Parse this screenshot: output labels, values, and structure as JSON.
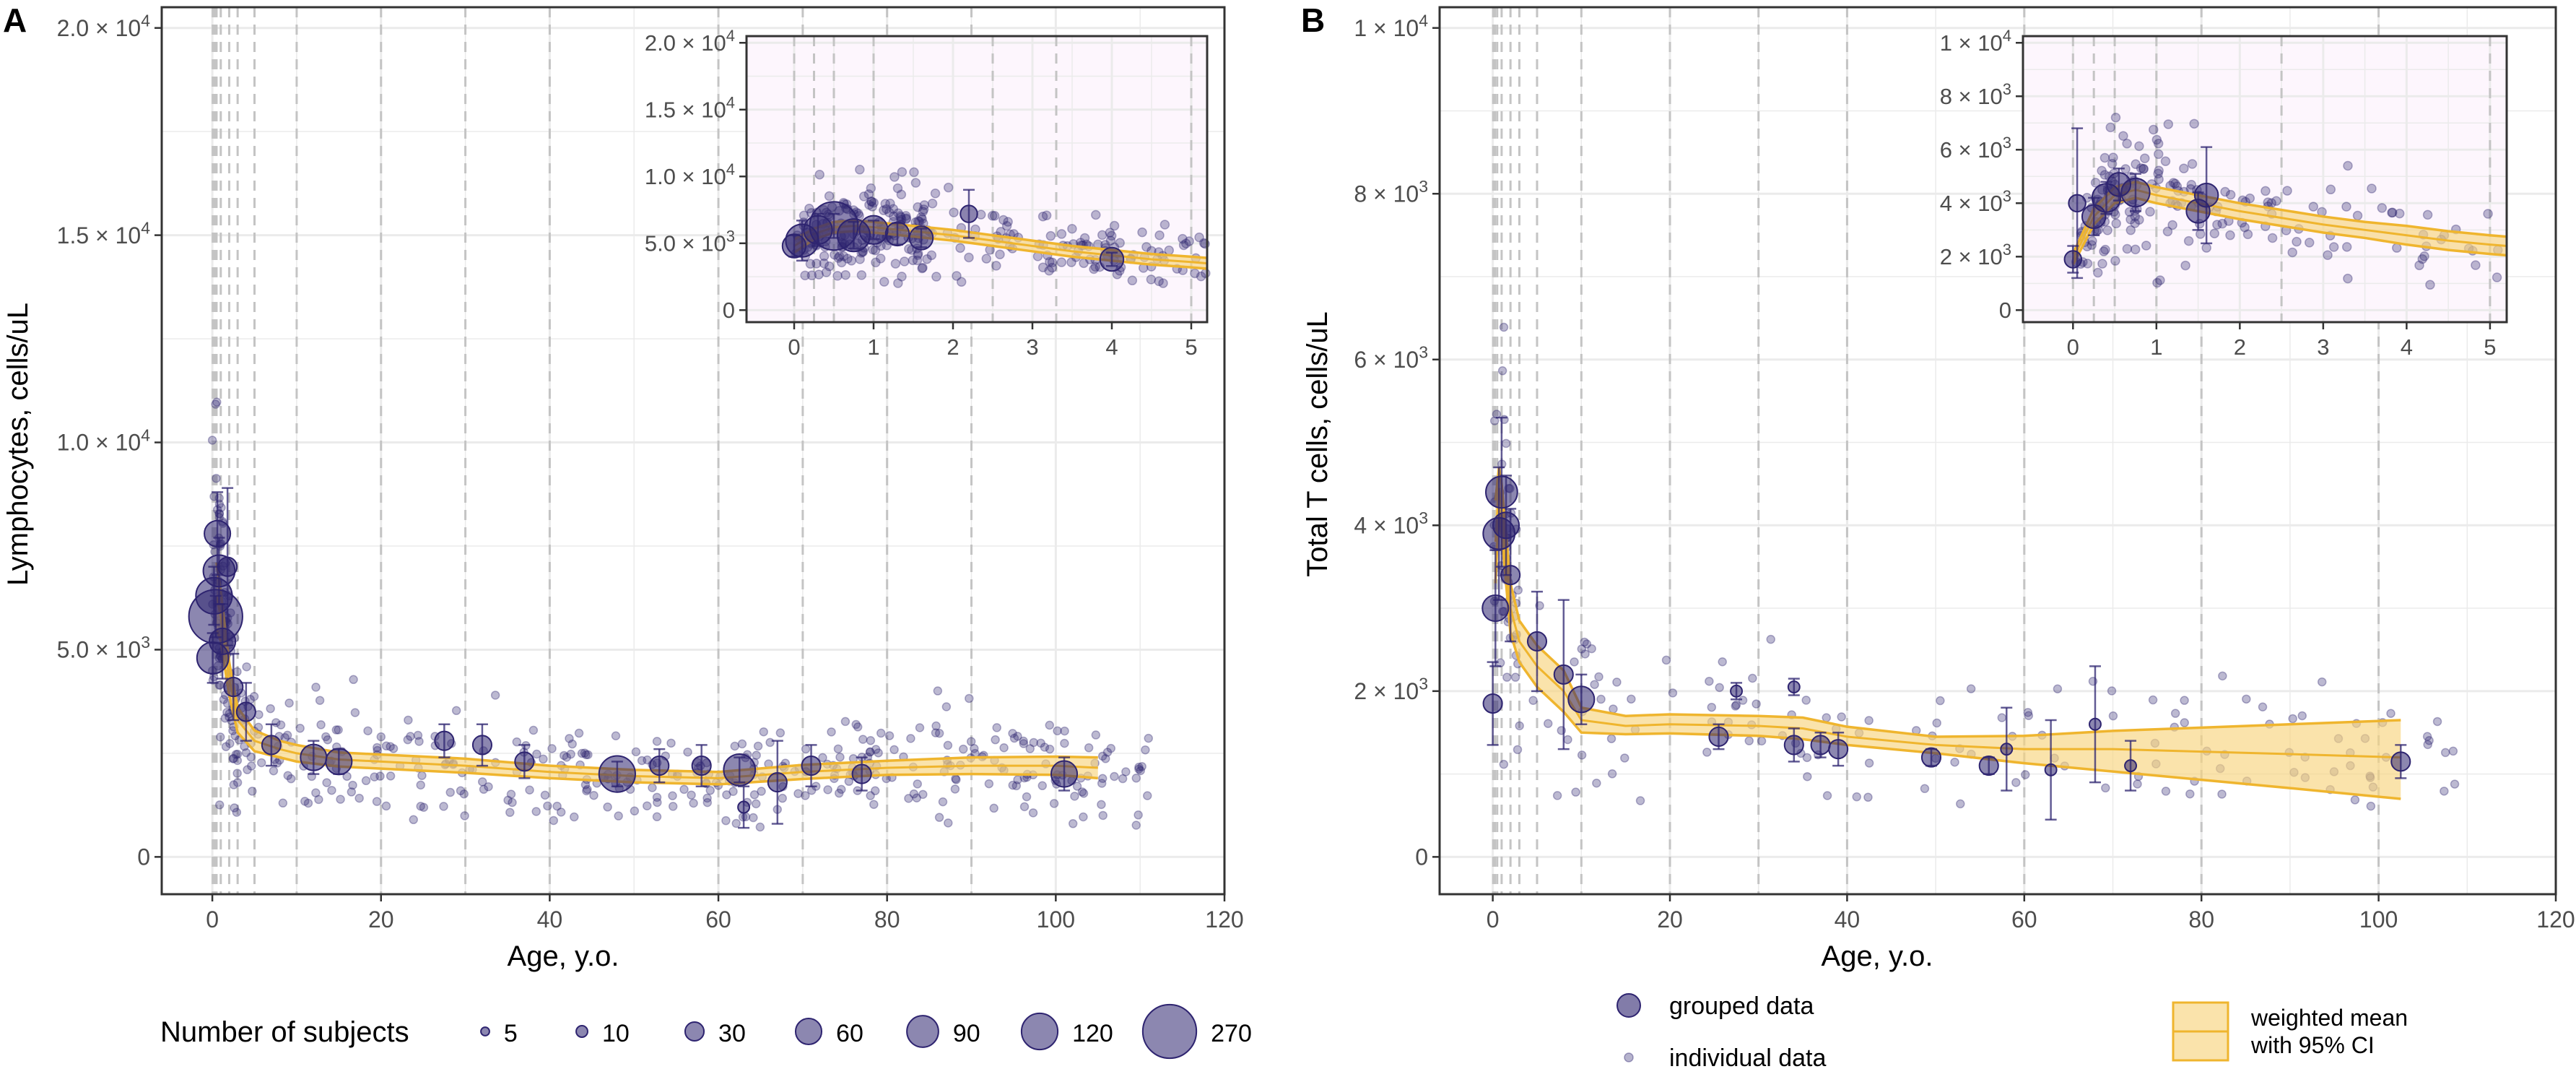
{
  "colors": {
    "points": "#2E2470",
    "ribbon_fill": "#F8D47E",
    "ribbon_line": "#EFB52E",
    "grid": "#EBEBEB",
    "vline": "#C4C4C4",
    "inset_bg": "#FDF6FD",
    "axis_text": "#4D4D4D"
  },
  "chart_data": [
    {
      "panel": "A",
      "type": "scatter",
      "ylabel": "Lymphocytes, cells/uL",
      "xlabel": "Age, y.o.",
      "xlim": [
        -6,
        120
      ],
      "ylim": [
        -900,
        20500
      ],
      "xticks": [
        0,
        20,
        40,
        60,
        80,
        100,
        120
      ],
      "xtick_labels": [
        "0",
        "20",
        "40",
        "60",
        "80",
        "100",
        "120"
      ],
      "yticks": [
        0,
        5000,
        10000,
        15000,
        20000
      ],
      "ytick_labels": [
        {
          "mant": "0",
          "exp": ""
        },
        {
          "mant": "5.0 × 10",
          "exp": "3"
        },
        {
          "mant": "1.0 × 10",
          "exp": "4"
        },
        {
          "mant": "1.5 × 10",
          "exp": "4"
        },
        {
          "mant": "2.0 × 10",
          "exp": "4"
        }
      ],
      "age_group_boundaries": [
        0.05,
        0.25,
        0.5,
        1,
        2,
        3,
        5,
        10,
        20,
        30,
        40,
        60,
        70,
        80,
        90
      ],
      "ribbon": {
        "x": [
          0.5,
          1,
          2,
          3,
          5,
          8,
          10,
          15,
          20,
          30,
          40,
          50,
          60,
          70,
          80,
          90,
          100,
          105
        ],
        "mean": [
          6300,
          5800,
          4300,
          3300,
          2800,
          2600,
          2500,
          2350,
          2300,
          2200,
          2050,
          1950,
          1900,
          2050,
          2150,
          2200,
          2200,
          2150
        ],
        "lower": [
          5500,
          5200,
          3900,
          3000,
          2550,
          2400,
          2300,
          2180,
          2130,
          2030,
          1900,
          1800,
          1750,
          1880,
          1980,
          2000,
          1980,
          1900
        ],
        "upper": [
          7100,
          6400,
          4700,
          3600,
          3050,
          2800,
          2700,
          2520,
          2470,
          2370,
          2200,
          2100,
          2050,
          2220,
          2320,
          2400,
          2420,
          2400
        ]
      },
      "grouped": [
        {
          "x": 0.05,
          "y": 4800,
          "n": 90,
          "err": 600
        },
        {
          "x": 0.2,
          "y": 6300,
          "n": 120,
          "err": 700
        },
        {
          "x": 0.4,
          "y": 5800,
          "n": 270,
          "err": 500
        },
        {
          "x": 0.6,
          "y": 7800,
          "n": 60,
          "err": 1000
        },
        {
          "x": 0.8,
          "y": 6900,
          "n": 90,
          "err": 800
        },
        {
          "x": 1.2,
          "y": 5200,
          "n": 60,
          "err": 900
        },
        {
          "x": 1.8,
          "y": 7000,
          "n": 30,
          "err": 1900
        },
        {
          "x": 2.5,
          "y": 4100,
          "n": 30,
          "err": 800
        },
        {
          "x": 4,
          "y": 3500,
          "n": 30,
          "err": 700
        },
        {
          "x": 7,
          "y": 2700,
          "n": 30,
          "err": 500
        },
        {
          "x": 12,
          "y": 2400,
          "n": 60,
          "err": 400
        },
        {
          "x": 15,
          "y": 2300,
          "n": 60,
          "err": 300
        },
        {
          "x": 27.5,
          "y": 2800,
          "n": 30,
          "err": 400
        },
        {
          "x": 32,
          "y": 2700,
          "n": 30,
          "err": 500
        },
        {
          "x": 37,
          "y": 2300,
          "n": 30,
          "err": 400
        },
        {
          "x": 48,
          "y": 2000,
          "n": 120,
          "err": 300
        },
        {
          "x": 53,
          "y": 2200,
          "n": 30,
          "err": 400
        },
        {
          "x": 58,
          "y": 2200,
          "n": 30,
          "err": 500
        },
        {
          "x": 62.5,
          "y": 2100,
          "n": 90,
          "err": 300
        },
        {
          "x": 63,
          "y": 1200,
          "n": 10,
          "err": 500
        },
        {
          "x": 67,
          "y": 1800,
          "n": 30,
          "err": 1000
        },
        {
          "x": 71,
          "y": 2200,
          "n": 30,
          "err": 500
        },
        {
          "x": 77,
          "y": 2000,
          "n": 30,
          "err": 400
        },
        {
          "x": 101,
          "y": 2000,
          "n": 60,
          "err": 400
        }
      ],
      "inset": {
        "xlim": [
          -0.6,
          5.2
        ],
        "ylim": [
          -900,
          20500
        ],
        "xticks": [
          0,
          1,
          2,
          3,
          4,
          5
        ],
        "xtick_labels": [
          "0",
          "1",
          "2",
          "3",
          "4",
          "5"
        ],
        "yticks": [
          0,
          5000,
          10000,
          15000,
          20000
        ],
        "ytick_labels": [
          {
            "mant": "0",
            "exp": ""
          },
          {
            "mant": "5.0 × 10",
            "exp": "3"
          },
          {
            "mant": "1.0 × 10",
            "exp": "4"
          },
          {
            "mant": "1.5 × 10",
            "exp": "4"
          },
          {
            "mant": "2.0 × 10",
            "exp": "4"
          }
        ],
        "age_group_boundaries": [
          0,
          0.25,
          0.5,
          1,
          2.5,
          3.3,
          5
        ],
        "ribbon": {
          "x": [
            0,
            0.25,
            0.5,
            0.75,
            1,
            1.5,
            2,
            2.5,
            3,
            3.5,
            4,
            4.5,
            5,
            5.2
          ],
          "mean": [
            4800,
            5700,
            6200,
            6300,
            6200,
            5900,
            5600,
            5200,
            4800,
            4400,
            4100,
            3800,
            3600,
            3500
          ],
          "lower": [
            4300,
            5300,
            5800,
            5900,
            5800,
            5500,
            5200,
            4800,
            4400,
            4000,
            3700,
            3400,
            3200,
            3100
          ],
          "upper": [
            5300,
            6100,
            6600,
            6700,
            6600,
            6300,
            6000,
            5600,
            5200,
            4800,
            4500,
            4200,
            4000,
            3900
          ]
        },
        "grouped": [
          {
            "x": 0,
            "y": 4800,
            "n": 60,
            "err": 800
          },
          {
            "x": 0.1,
            "y": 5200,
            "n": 120,
            "err": 1500
          },
          {
            "x": 0.3,
            "y": 6000,
            "n": 90,
            "err": 1200
          },
          {
            "x": 0.5,
            "y": 6300,
            "n": 270,
            "err": 900
          },
          {
            "x": 0.75,
            "y": 5600,
            "n": 120,
            "err": 1000
          },
          {
            "x": 1,
            "y": 6000,
            "n": 90,
            "err": 700
          },
          {
            "x": 1.3,
            "y": 5700,
            "n": 60,
            "err": 800
          },
          {
            "x": 1.6,
            "y": 5400,
            "n": 60,
            "err": 700
          },
          {
            "x": 2.2,
            "y": 7200,
            "n": 30,
            "err": 1800
          },
          {
            "x": 4,
            "y": 3800,
            "n": 60,
            "err": 500
          }
        ]
      }
    },
    {
      "panel": "B",
      "type": "scatter",
      "ylabel": "Total T cells, cells/uL",
      "xlabel": "Age, y.o.",
      "xlim": [
        -6,
        120
      ],
      "ylim": [
        -450,
        10250
      ],
      "xticks": [
        0,
        20,
        40,
        60,
        80,
        100,
        120
      ],
      "xtick_labels": [
        "0",
        "20",
        "40",
        "60",
        "80",
        "100",
        "120"
      ],
      "yticks": [
        0,
        2000,
        4000,
        6000,
        8000,
        10000
      ],
      "ytick_labels": [
        {
          "mant": "0",
          "exp": ""
        },
        {
          "mant": "2 × 10",
          "exp": "3"
        },
        {
          "mant": "4 × 10",
          "exp": "3"
        },
        {
          "mant": "6 × 10",
          "exp": "3"
        },
        {
          "mant": "8 × 10",
          "exp": "3"
        },
        {
          "mant": "1 × 10",
          "exp": "4"
        }
      ],
      "age_group_boundaries": [
        0.05,
        0.25,
        0.5,
        1,
        2,
        3,
        5,
        10,
        20,
        30,
        40,
        60,
        80,
        100
      ],
      "ribbon": {
        "x": [
          0.3,
          0.7,
          1,
          2,
          3,
          5,
          8,
          10,
          15,
          20,
          30,
          35,
          40,
          50,
          60,
          70,
          80,
          90,
          102.5
        ],
        "mean": [
          3800,
          4450,
          4200,
          3000,
          2600,
          2300,
          2000,
          1650,
          1580,
          1600,
          1580,
          1550,
          1450,
          1350,
          1300,
          1300,
          1270,
          1240,
          1200
        ],
        "lower": [
          3300,
          4200,
          3900,
          2700,
          2350,
          2050,
          1750,
          1500,
          1480,
          1490,
          1460,
          1420,
          1350,
          1250,
          1130,
          1030,
          930,
          830,
          700
        ],
        "upper": [
          4300,
          4700,
          4500,
          3300,
          2850,
          2550,
          2250,
          1800,
          1700,
          1720,
          1700,
          1680,
          1570,
          1450,
          1460,
          1520,
          1560,
          1600,
          1650
        ]
      },
      "grouped": [
        {
          "x": 0,
          "y": 1850,
          "n": 30,
          "err": 500
        },
        {
          "x": 0.3,
          "y": 3000,
          "n": 60,
          "err": 700
        },
        {
          "x": 0.7,
          "y": 3900,
          "n": 90,
          "err": 800
        },
        {
          "x": 1,
          "y": 4400,
          "n": 90,
          "err": 900
        },
        {
          "x": 1.5,
          "y": 4000,
          "n": 60,
          "err": 600
        },
        {
          "x": 2,
          "y": 3400,
          "n": 30,
          "err": 800
        },
        {
          "x": 5,
          "y": 2600,
          "n": 30,
          "err": 600
        },
        {
          "x": 8,
          "y": 2200,
          "n": 30,
          "err": 900
        },
        {
          "x": 10,
          "y": 1900,
          "n": 60,
          "err": 300
        },
        {
          "x": 25.5,
          "y": 1450,
          "n": 30,
          "err": 150
        },
        {
          "x": 27.5,
          "y": 2000,
          "n": 10,
          "err": 100
        },
        {
          "x": 34,
          "y": 1350,
          "n": 30,
          "err": 200
        },
        {
          "x": 34,
          "y": 2050,
          "n": 10,
          "err": 100
        },
        {
          "x": 37,
          "y": 1350,
          "n": 30,
          "err": 150
        },
        {
          "x": 39,
          "y": 1300,
          "n": 30,
          "err": 200
        },
        {
          "x": 49.5,
          "y": 1200,
          "n": 30,
          "err": 100
        },
        {
          "x": 56,
          "y": 1100,
          "n": 30,
          "err": 100
        },
        {
          "x": 58,
          "y": 1300,
          "n": 10,
          "err": 500
        },
        {
          "x": 63,
          "y": 1050,
          "n": 10,
          "err": 600
        },
        {
          "x": 68,
          "y": 1600,
          "n": 10,
          "err": 700
        },
        {
          "x": 72,
          "y": 1100,
          "n": 10,
          "err": 300
        },
        {
          "x": 102.5,
          "y": 1150,
          "n": 30,
          "err": 200
        }
      ],
      "inset": {
        "xlim": [
          -0.6,
          5.2
        ],
        "ylim": [
          -450,
          10250
        ],
        "xticks": [
          0,
          1,
          2,
          3,
          4,
          5
        ],
        "xtick_labels": [
          "0",
          "1",
          "2",
          "3",
          "4",
          "5"
        ],
        "yticks": [
          0,
          2000,
          4000,
          6000,
          8000,
          10000
        ],
        "ytick_labels": [
          {
            "mant": "0",
            "exp": ""
          },
          {
            "mant": "2 × 10",
            "exp": "3"
          },
          {
            "mant": "4 × 10",
            "exp": "3"
          },
          {
            "mant": "6 × 10",
            "exp": "3"
          },
          {
            "mant": "8 × 10",
            "exp": "3"
          },
          {
            "mant": "1 × 10",
            "exp": "4"
          }
        ],
        "age_group_boundaries": [
          0,
          0.25,
          0.5,
          1,
          2.5,
          5
        ],
        "ribbon": {
          "x": [
            0,
            0.25,
            0.5,
            0.75,
            1,
            1.5,
            2,
            2.5,
            3,
            3.5,
            4,
            4.5,
            5,
            5.2
          ],
          "mean": [
            1900,
            3500,
            4300,
            4500,
            4300,
            4000,
            3700,
            3450,
            3200,
            3000,
            2800,
            2600,
            2450,
            2400
          ],
          "lower": [
            1700,
            3200,
            4000,
            4200,
            4000,
            3700,
            3400,
            3150,
            2900,
            2700,
            2450,
            2250,
            2100,
            2050
          ],
          "upper": [
            2100,
            3800,
            4600,
            4800,
            4600,
            4300,
            4000,
            3750,
            3500,
            3300,
            3150,
            2950,
            2800,
            2750
          ]
        },
        "grouped": [
          {
            "x": 0,
            "y": 1900,
            "n": 30,
            "err": 500
          },
          {
            "x": 0.05,
            "y": 4000,
            "n": 30,
            "err": 2800
          },
          {
            "x": 0.25,
            "y": 3500,
            "n": 60,
            "err": 700
          },
          {
            "x": 0.4,
            "y": 4200,
            "n": 90,
            "err": 600
          },
          {
            "x": 0.55,
            "y": 4700,
            "n": 60,
            "err": 600
          },
          {
            "x": 0.75,
            "y": 4400,
            "n": 90,
            "err": 700
          },
          {
            "x": 1.5,
            "y": 3700,
            "n": 60,
            "err": 700
          },
          {
            "x": 1.6,
            "y": 4300,
            "n": 60,
            "err": 1800
          }
        ]
      }
    }
  ],
  "panel_labels": [
    "A",
    "B"
  ],
  "size_legend": {
    "title": "Number of subjects",
    "items": [
      {
        "label": "5",
        "n": 5
      },
      {
        "label": "10",
        "n": 10
      },
      {
        "label": "30",
        "n": 30
      },
      {
        "label": "60",
        "n": 60
      },
      {
        "label": "90",
        "n": 90
      },
      {
        "label": "120",
        "n": 120
      },
      {
        "label": "270",
        "n": 270
      }
    ]
  },
  "type_legend": {
    "grouped": "grouped data",
    "individual": "individual data"
  },
  "ribbon_legend": {
    "line1": "weighted mean",
    "line2": "with 95% CI"
  }
}
